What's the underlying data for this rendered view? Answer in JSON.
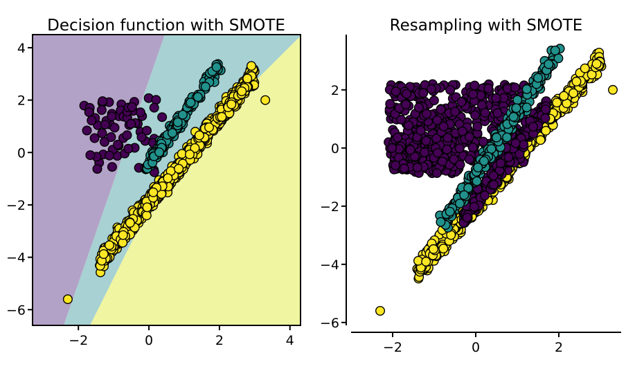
{
  "chart_data": [
    {
      "type": "scatter",
      "title": "Decision function with SMOTE",
      "xlabel": "",
      "ylabel": "",
      "xlim": [
        -3.3,
        4.3
      ],
      "ylim": [
        -6.6,
        4.5
      ],
      "xticks": [
        -2,
        0,
        2,
        4
      ],
      "yticks": [
        -6,
        -4,
        -2,
        0,
        2,
        4
      ],
      "xtick_labels": [
        "−2",
        "0",
        "2",
        "4"
      ],
      "ytick_labels": [
        "−6",
        "−4",
        "−2",
        "0",
        "2",
        "4"
      ],
      "grid": false,
      "background_regions": [
        {
          "class": "purple",
          "color": "#b3a2c7"
        },
        {
          "class": "teal",
          "color": "#a7d1d2"
        },
        {
          "class": "yellow",
          "color": "#eff5a1"
        }
      ],
      "series": [
        {
          "color": "#440154",
          "cluster": {
            "x": [
              -1.9,
              0.4
            ],
            "y": [
              -0.8,
              2.1
            ]
          }
        },
        {
          "color": "#21918c",
          "band": {
            "x": [
              -0.1,
              2.0
            ],
            "y": [
              -0.6,
              3.3
            ]
          }
        },
        {
          "color": "#fde725",
          "band": {
            "x": [
              -1.4,
              3.0
            ],
            "y": [
              -4.2,
              3.0
            ]
          },
          "outliers": [
            {
              "x": -2.3,
              "y": -5.6
            },
            {
              "x": 3.3,
              "y": 2.0
            }
          ]
        }
      ]
    },
    {
      "type": "scatter",
      "title": "Resampling with SMOTE",
      "xlabel": "",
      "ylabel": "",
      "xlim": [
        -3.0,
        3.5
      ],
      "ylim": [
        -6.1,
        3.9
      ],
      "xticks": [
        -2,
        0,
        2
      ],
      "yticks": [
        -6,
        -4,
        -2,
        0,
        2
      ],
      "xtick_labels": [
        "−2",
        "0",
        "2"
      ],
      "ytick_labels": [
        "−6",
        "−4",
        "−2",
        "0",
        "2"
      ],
      "grid": false,
      "series": [
        {
          "color": "#440154",
          "region": {
            "x": [
              -2.1,
              1.7
            ],
            "y": [
              -2.4,
              2.2
            ]
          }
        },
        {
          "color": "#21918c",
          "band": {
            "x": [
              -0.8,
              2.0
            ],
            "y": [
              -2.6,
              3.4
            ]
          }
        },
        {
          "color": "#fde725",
          "band": {
            "x": [
              -1.4,
              3.0
            ],
            "y": [
              -4.2,
              3.0
            ]
          },
          "outliers": [
            {
              "x": -2.3,
              "y": -5.6
            },
            {
              "x": 3.3,
              "y": 2.0
            }
          ]
        }
      ]
    }
  ]
}
